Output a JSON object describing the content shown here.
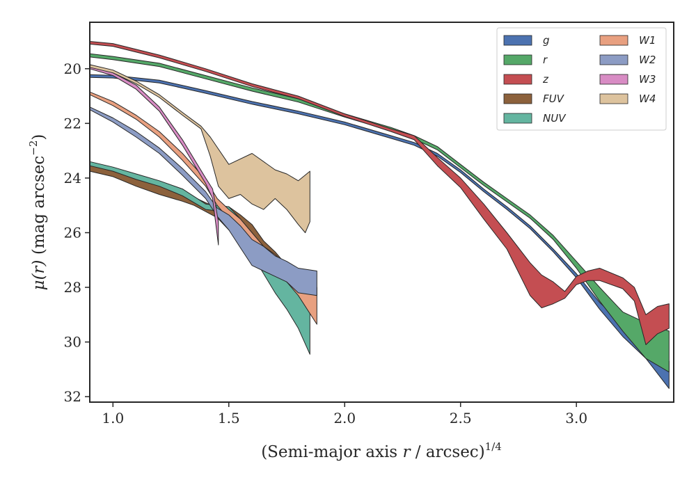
{
  "chart_data": {
    "type": "area",
    "xlabel": "(Semi-major axis r / arcsec)^1/4",
    "xlabel_parts": {
      "pre": "(Semi-major axis ",
      "var": "r",
      "mid": " / arcsec)",
      "sup": "1/4"
    },
    "ylabel": "μ(r) (mag arcsec^−2)",
    "ylabel_parts": {
      "var": "μ(r)",
      "mid": " (mag arcsec",
      "sup": "−2",
      "post": ")"
    },
    "xlim": [
      0.9,
      3.42
    ],
    "ylim": [
      32.2,
      18.3
    ],
    "y_inverted": true,
    "xticks": [
      1.0,
      1.5,
      2.0,
      2.5,
      3.0
    ],
    "xtick_labels": [
      "1.0",
      "1.5",
      "2.0",
      "2.5",
      "3.0"
    ],
    "yticks": [
      20,
      22,
      24,
      26,
      28,
      30,
      32
    ],
    "ytick_labels": [
      "20",
      "22",
      "24",
      "26",
      "28",
      "30",
      "32"
    ],
    "grid": false,
    "legend": {
      "placement": "top-right",
      "columns": 2
    },
    "series": [
      {
        "name": "g",
        "color": "#4c72b0",
        "upper": [
          [
            0.9,
            20.22
          ],
          [
            1.0,
            20.24
          ],
          [
            1.2,
            20.42
          ],
          [
            1.4,
            20.8
          ],
          [
            1.6,
            21.2
          ],
          [
            1.8,
            21.55
          ],
          [
            2.0,
            21.95
          ],
          [
            2.2,
            22.45
          ],
          [
            2.3,
            22.7
          ],
          [
            2.4,
            23.1
          ],
          [
            2.5,
            23.7
          ],
          [
            2.6,
            24.4
          ],
          [
            2.7,
            25.05
          ],
          [
            2.8,
            25.75
          ],
          [
            2.9,
            26.6
          ],
          [
            3.0,
            27.5
          ],
          [
            3.1,
            28.55
          ],
          [
            3.2,
            29.35
          ],
          [
            3.3,
            30.0
          ],
          [
            3.4,
            30.7
          ]
        ],
        "lower": [
          [
            0.9,
            20.32
          ],
          [
            1.0,
            20.34
          ],
          [
            1.2,
            20.52
          ],
          [
            1.4,
            20.9
          ],
          [
            1.6,
            21.3
          ],
          [
            1.8,
            21.65
          ],
          [
            2.0,
            22.05
          ],
          [
            2.2,
            22.55
          ],
          [
            2.3,
            22.8
          ],
          [
            2.4,
            23.2
          ],
          [
            2.5,
            23.8
          ],
          [
            2.6,
            24.5
          ],
          [
            2.7,
            25.15
          ],
          [
            2.8,
            25.85
          ],
          [
            2.9,
            26.7
          ],
          [
            3.0,
            27.65
          ],
          [
            3.1,
            28.8
          ],
          [
            3.2,
            29.8
          ],
          [
            3.3,
            30.6
          ],
          [
            3.4,
            31.7
          ]
        ]
      },
      {
        "name": "r",
        "color": "#55a868",
        "upper": [
          [
            0.9,
            19.45
          ],
          [
            1.0,
            19.55
          ],
          [
            1.2,
            19.8
          ],
          [
            1.4,
            20.25
          ],
          [
            1.6,
            20.7
          ],
          [
            1.8,
            21.1
          ],
          [
            2.0,
            21.65
          ],
          [
            2.2,
            22.15
          ],
          [
            2.3,
            22.45
          ],
          [
            2.4,
            22.85
          ],
          [
            2.5,
            23.5
          ],
          [
            2.6,
            24.15
          ],
          [
            2.7,
            24.75
          ],
          [
            2.8,
            25.35
          ],
          [
            2.9,
            26.1
          ],
          [
            3.0,
            27.05
          ],
          [
            3.1,
            28.0
          ],
          [
            3.2,
            28.9
          ],
          [
            3.3,
            29.3
          ],
          [
            3.4,
            29.6
          ]
        ],
        "lower": [
          [
            0.9,
            19.57
          ],
          [
            1.0,
            19.67
          ],
          [
            1.2,
            19.92
          ],
          [
            1.4,
            20.37
          ],
          [
            1.6,
            20.82
          ],
          [
            1.8,
            21.22
          ],
          [
            2.0,
            21.77
          ],
          [
            2.2,
            22.27
          ],
          [
            2.3,
            22.57
          ],
          [
            2.4,
            22.97
          ],
          [
            2.5,
            23.62
          ],
          [
            2.6,
            24.27
          ],
          [
            2.7,
            24.87
          ],
          [
            2.8,
            25.47
          ],
          [
            2.9,
            26.25
          ],
          [
            3.0,
            27.3
          ],
          [
            3.1,
            28.5
          ],
          [
            3.2,
            29.6
          ],
          [
            3.3,
            30.6
          ],
          [
            3.4,
            31.1
          ]
        ]
      },
      {
        "name": "z",
        "color": "#c44e52",
        "upper": [
          [
            0.9,
            19.0
          ],
          [
            1.0,
            19.08
          ],
          [
            1.2,
            19.5
          ],
          [
            1.4,
            20.0
          ],
          [
            1.6,
            20.55
          ],
          [
            1.8,
            21.0
          ],
          [
            2.0,
            21.65
          ],
          [
            2.2,
            22.2
          ],
          [
            2.3,
            22.45
          ],
          [
            2.4,
            23.25
          ],
          [
            2.5,
            24.0
          ],
          [
            2.6,
            24.95
          ],
          [
            2.7,
            26.0
          ],
          [
            2.8,
            27.1
          ],
          [
            2.85,
            27.55
          ],
          [
            2.9,
            27.8
          ],
          [
            2.95,
            28.15
          ],
          [
            3.0,
            27.6
          ],
          [
            3.05,
            27.4
          ],
          [
            3.1,
            27.3
          ],
          [
            3.2,
            27.65
          ],
          [
            3.25,
            28.0
          ],
          [
            3.3,
            29.0
          ],
          [
            3.35,
            28.7
          ],
          [
            3.4,
            28.6
          ]
        ],
        "lower": [
          [
            0.9,
            19.1
          ],
          [
            1.0,
            19.18
          ],
          [
            1.2,
            19.6
          ],
          [
            1.4,
            20.1
          ],
          [
            1.6,
            20.65
          ],
          [
            1.8,
            21.1
          ],
          [
            2.0,
            21.75
          ],
          [
            2.2,
            22.3
          ],
          [
            2.3,
            22.6
          ],
          [
            2.4,
            23.55
          ],
          [
            2.5,
            24.35
          ],
          [
            2.6,
            25.5
          ],
          [
            2.7,
            26.6
          ],
          [
            2.8,
            28.3
          ],
          [
            2.85,
            28.75
          ],
          [
            2.9,
            28.6
          ],
          [
            2.95,
            28.4
          ],
          [
            3.0,
            27.9
          ],
          [
            3.05,
            27.75
          ],
          [
            3.1,
            27.75
          ],
          [
            3.2,
            28.05
          ],
          [
            3.25,
            28.5
          ],
          [
            3.3,
            30.1
          ],
          [
            3.35,
            29.7
          ],
          [
            3.4,
            29.5
          ]
        ]
      },
      {
        "name": "FUV",
        "color": "#8c613c",
        "upper": [
          [
            0.9,
            23.55
          ],
          [
            1.0,
            23.7
          ],
          [
            1.1,
            24.0
          ],
          [
            1.2,
            24.25
          ],
          [
            1.3,
            24.4
          ],
          [
            1.35,
            24.7
          ],
          [
            1.45,
            25.1
          ],
          [
            1.5,
            25.05
          ],
          [
            1.55,
            25.35
          ],
          [
            1.6,
            25.7
          ],
          [
            1.65,
            26.3
          ],
          [
            1.7,
            26.7
          ],
          [
            1.75,
            27.2
          ],
          [
            1.8,
            27.5
          ]
        ],
        "lower": [
          [
            0.9,
            23.75
          ],
          [
            1.0,
            23.95
          ],
          [
            1.1,
            24.3
          ],
          [
            1.2,
            24.6
          ],
          [
            1.3,
            24.85
          ],
          [
            1.35,
            25.0
          ],
          [
            1.45,
            25.45
          ],
          [
            1.5,
            25.9
          ],
          [
            1.55,
            26.25
          ],
          [
            1.6,
            26.6
          ],
          [
            1.65,
            27.4
          ],
          [
            1.7,
            27.9
          ],
          [
            1.75,
            28.6
          ],
          [
            1.8,
            28.8
          ]
        ]
      },
      {
        "name": "NUV",
        "color": "#64b5a0",
        "upper": [
          [
            0.9,
            23.4
          ],
          [
            1.0,
            23.6
          ],
          [
            1.1,
            23.85
          ],
          [
            1.2,
            24.1
          ],
          [
            1.3,
            24.4
          ],
          [
            1.4,
            24.95
          ],
          [
            1.5,
            25.05
          ],
          [
            1.55,
            25.5
          ],
          [
            1.6,
            26.1
          ],
          [
            1.65,
            26.7
          ],
          [
            1.7,
            27.2
          ],
          [
            1.75,
            27.8
          ],
          [
            1.8,
            28.2
          ],
          [
            1.85,
            28.8
          ]
        ],
        "lower": [
          [
            0.9,
            23.55
          ],
          [
            1.0,
            23.75
          ],
          [
            1.1,
            24.05
          ],
          [
            1.2,
            24.3
          ],
          [
            1.3,
            24.65
          ],
          [
            1.4,
            25.15
          ],
          [
            1.5,
            25.25
          ],
          [
            1.55,
            26.0
          ],
          [
            1.6,
            26.8
          ],
          [
            1.65,
            27.5
          ],
          [
            1.7,
            28.2
          ],
          [
            1.75,
            28.8
          ],
          [
            1.8,
            29.5
          ],
          [
            1.85,
            30.45
          ]
        ]
      },
      {
        "name": "W1",
        "color": "#e8a080",
        "upper": [
          [
            0.9,
            20.85
          ],
          [
            1.0,
            21.2
          ],
          [
            1.1,
            21.7
          ],
          [
            1.2,
            22.3
          ],
          [
            1.3,
            23.1
          ],
          [
            1.4,
            24.05
          ],
          [
            1.45,
            24.75
          ],
          [
            1.5,
            25.15
          ],
          [
            1.55,
            25.5
          ],
          [
            1.6,
            26.0
          ],
          [
            1.65,
            26.5
          ],
          [
            1.7,
            26.8
          ],
          [
            1.75,
            27.2
          ],
          [
            1.8,
            27.6
          ],
          [
            1.88,
            28.0
          ]
        ],
        "lower": [
          [
            0.9,
            20.95
          ],
          [
            1.0,
            21.35
          ],
          [
            1.1,
            21.85
          ],
          [
            1.2,
            22.5
          ],
          [
            1.3,
            23.35
          ],
          [
            1.4,
            24.3
          ],
          [
            1.45,
            25.0
          ],
          [
            1.5,
            25.5
          ],
          [
            1.55,
            26.0
          ],
          [
            1.6,
            26.6
          ],
          [
            1.65,
            27.1
          ],
          [
            1.7,
            27.4
          ],
          [
            1.75,
            27.8
          ],
          [
            1.8,
            28.3
          ],
          [
            1.88,
            29.35
          ]
        ]
      },
      {
        "name": "W2",
        "color": "#8c9cc4",
        "upper": [
          [
            0.9,
            21.4
          ],
          [
            1.0,
            21.8
          ],
          [
            1.1,
            22.3
          ],
          [
            1.2,
            22.9
          ],
          [
            1.3,
            23.65
          ],
          [
            1.4,
            24.5
          ],
          [
            1.45,
            25.1
          ],
          [
            1.5,
            25.35
          ],
          [
            1.55,
            25.75
          ],
          [
            1.6,
            26.25
          ],
          [
            1.65,
            26.5
          ],
          [
            1.7,
            26.85
          ],
          [
            1.75,
            27.05
          ],
          [
            1.8,
            27.3
          ],
          [
            1.88,
            27.4
          ]
        ],
        "lower": [
          [
            0.9,
            21.5
          ],
          [
            1.0,
            21.95
          ],
          [
            1.1,
            22.5
          ],
          [
            1.2,
            23.1
          ],
          [
            1.3,
            23.9
          ],
          [
            1.4,
            24.75
          ],
          [
            1.45,
            25.4
          ],
          [
            1.5,
            25.9
          ],
          [
            1.55,
            26.55
          ],
          [
            1.6,
            27.2
          ],
          [
            1.65,
            27.4
          ],
          [
            1.7,
            27.6
          ],
          [
            1.75,
            27.8
          ],
          [
            1.8,
            28.2
          ],
          [
            1.88,
            28.3
          ]
        ]
      },
      {
        "name": "W3",
        "color": "#d88cc4",
        "upper": [
          [
            0.9,
            19.9
          ],
          [
            1.0,
            20.15
          ],
          [
            1.1,
            20.6
          ],
          [
            1.2,
            21.4
          ],
          [
            1.3,
            22.6
          ],
          [
            1.35,
            23.3
          ],
          [
            1.4,
            24.0
          ],
          [
            1.43,
            24.4
          ],
          [
            1.455,
            25.6
          ]
        ],
        "lower": [
          [
            0.9,
            20.0
          ],
          [
            1.0,
            20.25
          ],
          [
            1.1,
            20.75
          ],
          [
            1.2,
            21.55
          ],
          [
            1.3,
            22.8
          ],
          [
            1.35,
            23.5
          ],
          [
            1.4,
            24.2
          ],
          [
            1.43,
            24.75
          ],
          [
            1.455,
            26.45
          ]
        ]
      },
      {
        "name": "W4",
        "color": "#ddc39e",
        "upper": [
          [
            0.9,
            19.85
          ],
          [
            1.0,
            20.05
          ],
          [
            1.1,
            20.45
          ],
          [
            1.2,
            20.95
          ],
          [
            1.3,
            21.6
          ],
          [
            1.38,
            22.1
          ],
          [
            1.42,
            22.5
          ],
          [
            1.5,
            23.5
          ],
          [
            1.6,
            23.1
          ],
          [
            1.7,
            23.7
          ],
          [
            1.75,
            23.85
          ],
          [
            1.8,
            24.1
          ],
          [
            1.85,
            23.75
          ]
        ],
        "lower": [
          [
            0.9,
            19.95
          ],
          [
            1.0,
            20.15
          ],
          [
            1.1,
            20.55
          ],
          [
            1.2,
            21.05
          ],
          [
            1.3,
            21.7
          ],
          [
            1.38,
            22.2
          ],
          [
            1.42,
            23.2
          ],
          [
            1.455,
            24.3
          ],
          [
            1.5,
            24.75
          ],
          [
            1.55,
            24.6
          ],
          [
            1.6,
            24.95
          ],
          [
            1.65,
            25.15
          ],
          [
            1.7,
            24.75
          ],
          [
            1.75,
            25.15
          ],
          [
            1.8,
            25.7
          ],
          [
            1.83,
            26.0
          ],
          [
            1.85,
            25.6
          ]
        ]
      }
    ]
  }
}
